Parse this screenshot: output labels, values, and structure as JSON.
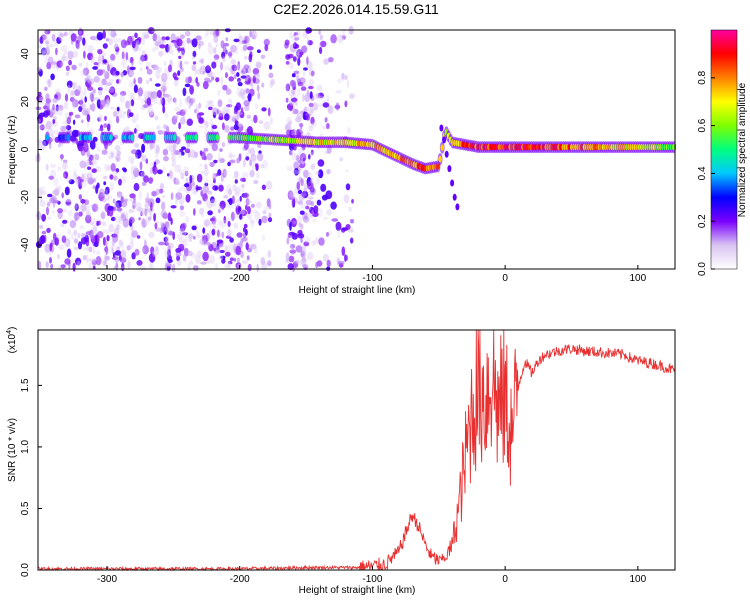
{
  "title": "C2E2.2026.014.15.59.G11",
  "chart_data": [
    {
      "type": "heatmap",
      "xlabel": "Height of straight line (km)",
      "ylabel": "Frequency (Hz)",
      "xlim": [
        -352,
        128
      ],
      "ylim": [
        -50,
        50
      ],
      "xticks": [
        -300,
        -200,
        -100,
        0,
        100
      ],
      "yticks": [
        -40,
        -20,
        0,
        20,
        40
      ],
      "grid": false,
      "colorbar": {
        "label": "Normalized spectral amplitude",
        "range": [
          0,
          1
        ],
        "ticks": [
          "0.0",
          "0.2",
          "0.4",
          "0.6",
          "0.8"
        ],
        "colormap": [
          "#ffffff",
          "#d9c4f2",
          "#7a00ff",
          "#0000ff",
          "#00c8ff",
          "#00ff7f",
          "#7fff00",
          "#ffff00",
          "#ff8000",
          "#ff0000",
          "#ff00a0"
        ]
      },
      "ridge_track": {
        "height_km": [
          -345,
          -300,
          -250,
          -200,
          -170,
          -140,
          -120,
          -100,
          -85,
          -70,
          -60,
          -50,
          -45,
          -40,
          -30,
          -20,
          0,
          50,
          100,
          125
        ],
        "frequency_hz": [
          5,
          5,
          5,
          5,
          4,
          3,
          3,
          2,
          -2,
          -6,
          -8,
          -7,
          8,
          3,
          2,
          1,
          1,
          1,
          1,
          1
        ],
        "amplitude": [
          0.35,
          0.4,
          0.45,
          0.55,
          0.65,
          0.7,
          0.72,
          0.75,
          0.8,
          0.82,
          0.85,
          0.8,
          0.6,
          0.7,
          0.85,
          0.9,
          0.9,
          0.85,
          0.7,
          0.6
        ]
      }
    },
    {
      "type": "line",
      "xlabel": "Height of straight line (km)",
      "ylabel": "SNR (10 * v/v)",
      "multiplier": "(x10",
      "multiplier_exp": "4",
      "xlim": [
        -352,
        128
      ],
      "ylim": [
        0,
        1.95
      ],
      "xticks": [
        -300,
        -200,
        -100,
        0,
        100
      ],
      "yticks": [
        "0.0",
        "0.5",
        "1.0",
        "1.5"
      ],
      "grid": false,
      "series": [
        {
          "color": "#e83030",
          "x": [
            -352,
            -300,
            -250,
            -200,
            -170,
            -150,
            -130,
            -110,
            -100,
            -90,
            -80,
            -75,
            -70,
            -65,
            -60,
            -55,
            -50,
            -45,
            -40,
            -35,
            -30,
            -25,
            -20,
            -15,
            -10,
            -5,
            0,
            5,
            10,
            15,
            20,
            25,
            30,
            40,
            50,
            60,
            70,
            80,
            90,
            95,
            100,
            110,
            120,
            128
          ],
          "y": [
            0.01,
            0.01,
            0.01,
            0.01,
            0.015,
            0.02,
            0.02,
            0.02,
            0.03,
            0.05,
            0.15,
            0.3,
            0.45,
            0.35,
            0.2,
            0.1,
            0.08,
            0.1,
            0.2,
            0.5,
            0.9,
            1.3,
            1.5,
            1.4,
            1.6,
            1.3,
            1.4,
            1.1,
            1.5,
            1.7,
            1.6,
            1.7,
            1.75,
            1.78,
            1.8,
            1.78,
            1.77,
            1.76,
            1.75,
            1.72,
            1.7,
            1.68,
            1.65,
            1.62
          ]
        }
      ]
    }
  ]
}
